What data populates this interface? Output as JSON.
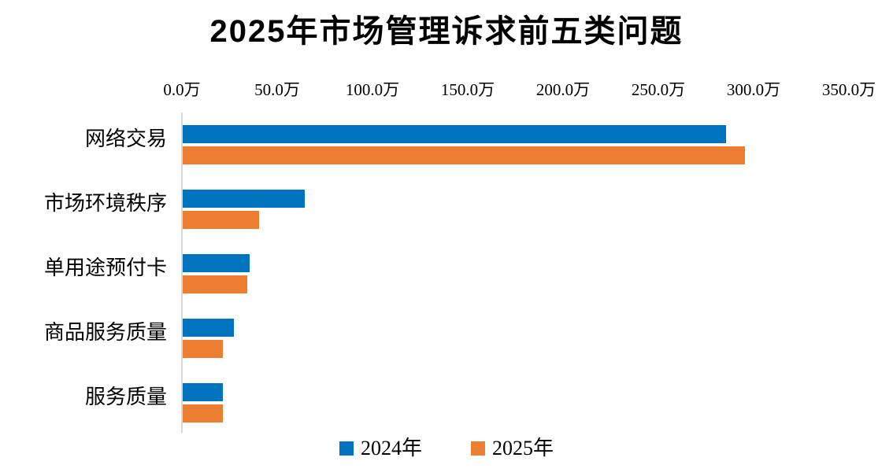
{
  "colors": {
    "series_2024": "#0073BE",
    "series_2025": "#ED7D31",
    "axis_line": "#D9D9D9",
    "text": "#000000",
    "background": "#FFFFFF"
  },
  "chart_data": {
    "type": "bar",
    "orientation": "horizontal",
    "title": "2025年市场管理诉求前五类问题",
    "unit": "万",
    "categories": [
      "网络交易",
      "市场环境秩序",
      "单用途预付卡",
      "商品服务质量",
      "服务质量"
    ],
    "series": [
      {
        "name": "2024年",
        "color": "#0073BE",
        "values": [
          285,
          64,
          35,
          27,
          21
        ]
      },
      {
        "name": "2025年",
        "color": "#ED7D31",
        "values": [
          295,
          40,
          34,
          21,
          21
        ]
      }
    ],
    "x_axis": {
      "position": "top",
      "min": 0,
      "max": 350,
      "tick_interval": 50,
      "tick_labels": [
        "0.0万",
        "50.0万",
        "100.0万",
        "150.0万",
        "200.0万",
        "250.0万",
        "300.0万",
        "350.0万"
      ]
    },
    "legend": {
      "position": "bottom",
      "entries": [
        "2024年",
        "2025年"
      ]
    },
    "grid": false,
    "value_labels": false
  }
}
